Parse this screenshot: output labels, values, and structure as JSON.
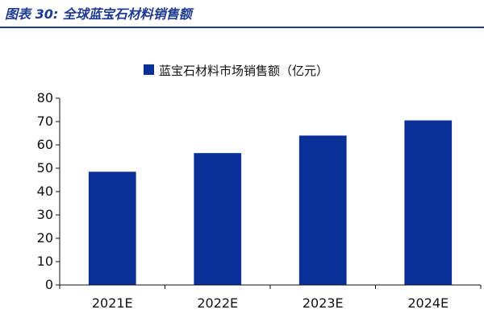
{
  "figure_title": "图表 30:  全球蓝宝石材料销售额",
  "colors": {
    "bar": "#0a2f96",
    "title": "#1f3a93",
    "axis": "#111111"
  },
  "chart_data": {
    "type": "bar",
    "title": "",
    "xlabel": "",
    "ylabel": "",
    "categories": [
      "2021E",
      "2022E",
      "2023E",
      "2024E"
    ],
    "series": [
      {
        "name": "蓝宝石材料市场销售额（亿元）",
        "values": [
          48.5,
          56.5,
          64,
          70.5
        ]
      }
    ],
    "ylim": [
      0,
      80
    ],
    "yticks": [
      0,
      10,
      20,
      30,
      40,
      50,
      60,
      70,
      80
    ],
    "legend_position": "top-center",
    "grid": false
  }
}
